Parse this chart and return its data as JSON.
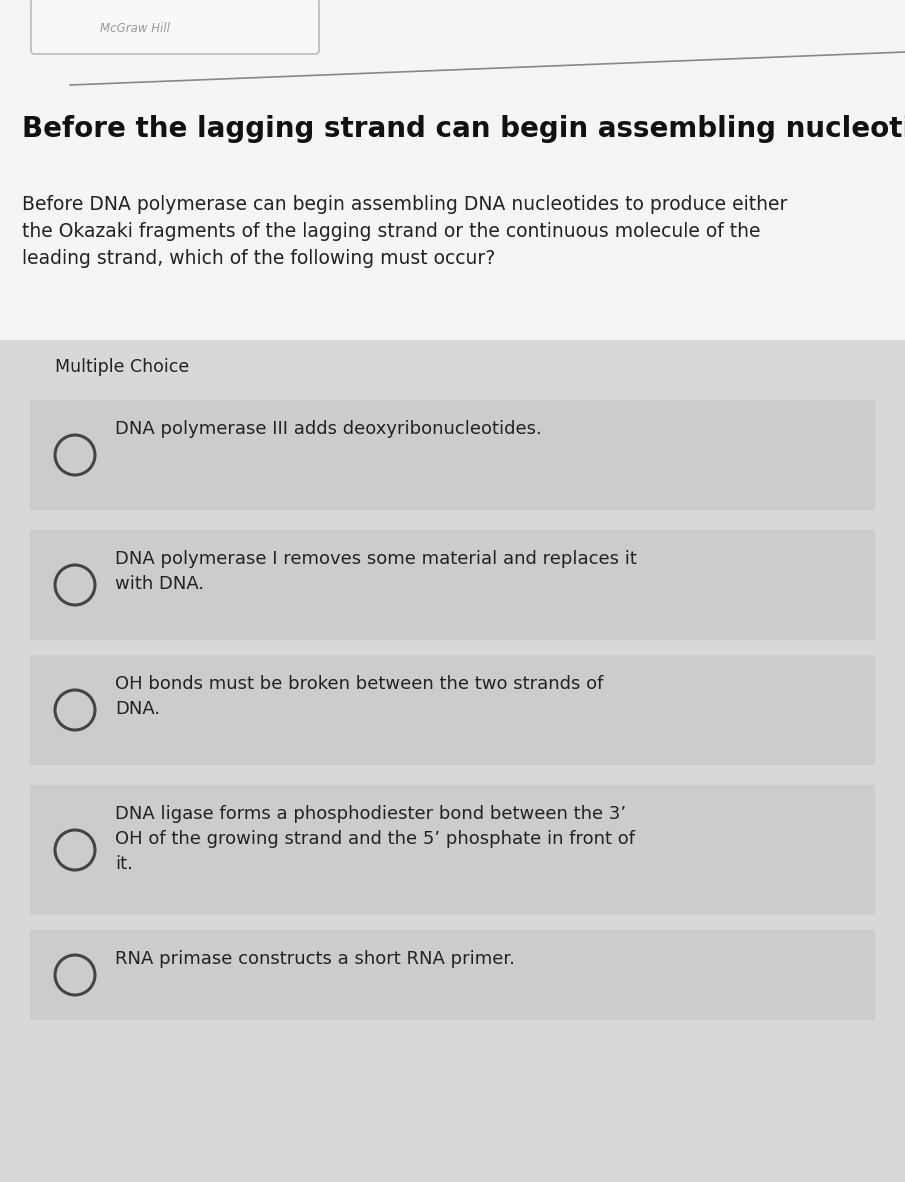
{
  "title": "Before the lagging strand can begin assembling nucleotides",
  "question": "Before DNA polymerase can begin assembling DNA nucleotides to produce either\nthe Okazaki fragments of the lagging strand or the continuous molecule of the\nleading strand, which of the following must occur?",
  "multiple_choice_label": "Multiple Choice",
  "choices": [
    "DNA polymerase III adds deoxyribonucleotides.",
    "DNA polymerase I removes some material and replaces it\nwith DNA.",
    "OH bonds must be broken between the two strands of\nDNA.",
    "DNA ligase forms a phosphodiester bond between the 3’\nOH of the growing strand and the 5’ phosphate in front of\nit.",
    "RNA primase constructs a short RNA primer."
  ],
  "page_bg": "#e8e8e8",
  "white_area_bg": "#f5f5f5",
  "card_bg": "#d8d8d8",
  "choice_bg": "#cccccc",
  "title_color": "#111111",
  "text_color": "#222222",
  "circle_edge_color": "#444444",
  "divider_line_color": "#888888",
  "header_box_color": "#dddddd",
  "header_text_color": "#999999"
}
